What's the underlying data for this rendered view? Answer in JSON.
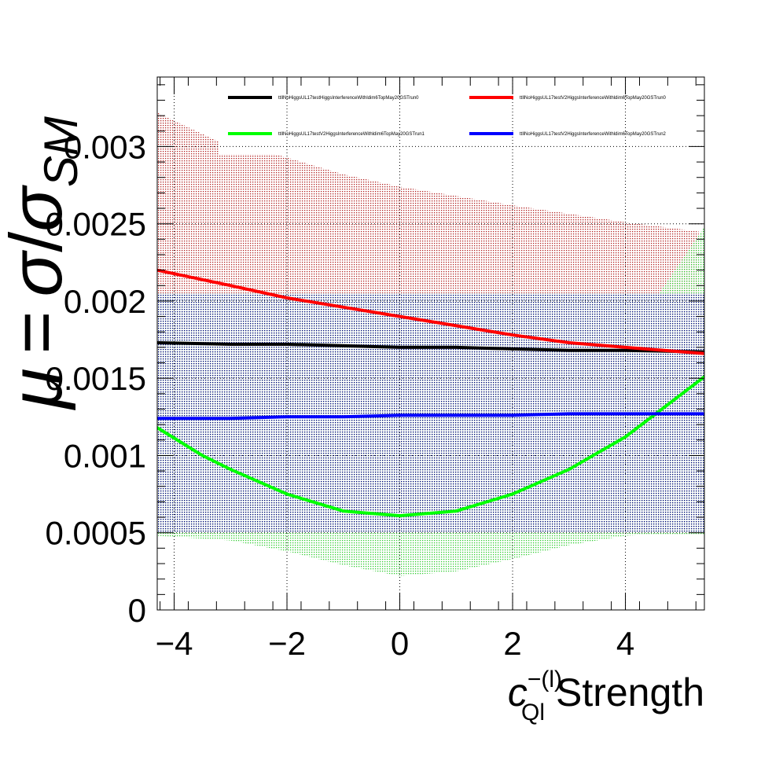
{
  "chart_data": {
    "type": "line",
    "title": "",
    "xlabel": {
      "symbol": "c",
      "superscript": "−(l)",
      "subscript": "Ql",
      "text": "Strength"
    },
    "ylabel": {
      "mu": "μ",
      "equals": "=",
      "sigma": "σ",
      "slash": "/",
      "sigma_sm": "σ",
      "sm": "SM"
    },
    "xlim": [
      -4.3,
      5.4
    ],
    "ylim": [
      0,
      0.00345
    ],
    "x_ticks": [
      -4,
      -2,
      0,
      2,
      4
    ],
    "x_tick_labels": [
      "−4",
      "−2",
      "0",
      "2",
      "4"
    ],
    "y_ticks": [
      0,
      0.0005,
      0.001,
      0.0015,
      0.002,
      0.0025,
      0.003
    ],
    "y_tick_labels": [
      "0",
      "0.0005",
      "0.001",
      "0.0015",
      "0.002",
      "0.0025",
      "0.003"
    ],
    "grid": true,
    "legend_position": "top",
    "series": [
      {
        "name": "ttllNoHiggsUL17testHiggsInterferenceWithldim6TopMay20GSTrun0",
        "color": "#000000",
        "x": [
          -4.3,
          -3,
          -2,
          -1,
          0,
          1,
          2,
          3,
          4,
          5.4
        ],
        "y": [
          0.00173,
          0.00172,
          0.00172,
          0.00171,
          0.0017,
          0.0017,
          0.00169,
          0.00168,
          0.00168,
          0.00167
        ]
      },
      {
        "name": "ttllNoHiggsUL17testV2HiggsInterferenceWithldim6TopMay20GSTrun0",
        "color": "#ff0000",
        "x": [
          -4.3,
          -3,
          -2,
          -1,
          0,
          1,
          2,
          3,
          4,
          5.4
        ],
        "y": [
          0.0022,
          0.0021,
          0.00202,
          0.00196,
          0.0019,
          0.00184,
          0.00178,
          0.00173,
          0.0017,
          0.00166
        ]
      },
      {
        "name": "ttllNoHiggsUL17testV2HiggsInterferenceWithldim6TopMay20GSTrun1",
        "color": "#00ff00",
        "x": [
          -4.3,
          -3.5,
          -3,
          -2,
          -1,
          0,
          1,
          2,
          3,
          4,
          5.4
        ],
        "y": [
          0.00118,
          0.001,
          0.00091,
          0.00075,
          0.00064,
          0.00061,
          0.00064,
          0.00075,
          0.00091,
          0.00112,
          0.00151
        ]
      },
      {
        "name": "ttllNoHiggsUL17testV2HiggsInterferenceWithldim6TopMay20GSTrun2",
        "color": "#0000ff",
        "x": [
          -4.3,
          -3,
          -2,
          -1,
          0,
          1,
          2,
          3,
          4,
          5.4
        ],
        "y": [
          0.00124,
          0.00124,
          0.00125,
          0.00125,
          0.00126,
          0.00126,
          0.00126,
          0.00127,
          0.00127,
          0.00127
        ]
      }
    ],
    "bands": [
      {
        "name": "ttllNoHiggsUL17testV2HiggsInterferenceWithldim6TopMay20GSTrun0",
        "color": "#b22222",
        "x": [
          -4.3,
          -3.2,
          -3.2,
          -2.2,
          -1,
          0,
          2,
          4,
          5.3
        ],
        "upper": [
          0.00322,
          0.00303,
          0.00295,
          0.00295,
          0.00282,
          0.00274,
          0.00262,
          0.00251,
          0.00245
        ],
        "lower": [
          0.00205,
          0.00205,
          0.00205,
          0.00205,
          0.00205,
          0.00205,
          0.00205,
          0.00205,
          0.00205
        ]
      },
      {
        "name": "ttllNoHiggsUL17testV2HiggsInterferenceWithldim6TopMay20GSTrun1",
        "color": "#33cc33",
        "x": [
          -4.3,
          -3,
          -2,
          -1,
          0,
          1,
          2,
          3,
          4,
          4.6,
          5.4
        ],
        "upper": [
          0.00205,
          0.00205,
          0.00205,
          0.00205,
          0.00205,
          0.00205,
          0.00205,
          0.00205,
          0.00205,
          0.00205,
          0.00248
        ],
        "lower": [
          0.00048,
          0.00045,
          0.00038,
          0.00029,
          0.00022,
          0.00025,
          0.00033,
          0.00042,
          0.00048,
          0.00049,
          0.00049
        ]
      },
      {
        "name": "ttllNoHiggsUL17testV2HiggsInterferenceWithldim6TopMay20GSTrun2",
        "color": "#000080",
        "x": [
          -4.3,
          5.4
        ],
        "upper": [
          0.00205,
          0.00205
        ],
        "lower": [
          0.0005,
          0.0005
        ]
      }
    ]
  }
}
